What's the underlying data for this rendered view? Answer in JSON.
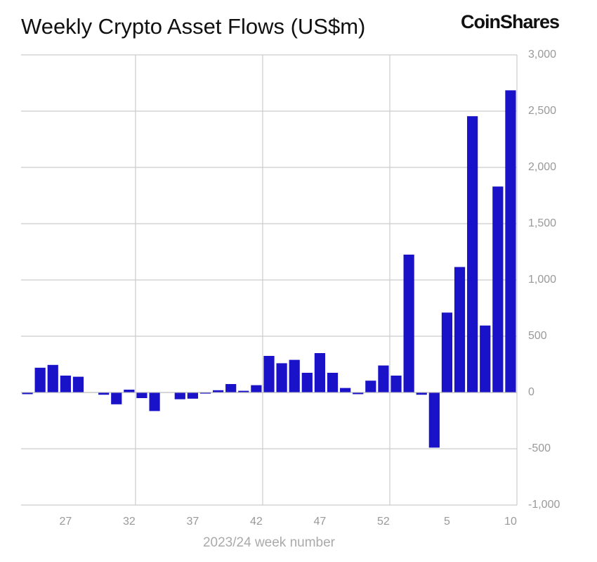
{
  "chart_data": {
    "type": "bar",
    "title": "Weekly Crypto Asset Flows (US$m)",
    "brand": "CoinShares",
    "x_label": "2023/24 week number",
    "categories": [
      null,
      null,
      null,
      "27",
      null,
      null,
      null,
      null,
      "32",
      null,
      null,
      null,
      null,
      "37",
      null,
      null,
      null,
      null,
      "42",
      null,
      null,
      null,
      null,
      "47",
      null,
      null,
      null,
      null,
      "52",
      null,
      null,
      null,
      null,
      "5",
      null,
      null,
      null,
      null,
      "10"
    ],
    "values": [
      -15,
      220,
      245,
      150,
      140,
      0,
      -20,
      -105,
      25,
      -50,
      -165,
      0,
      -60,
      -55,
      -10,
      20,
      75,
      15,
      65,
      325,
      260,
      290,
      175,
      350,
      175,
      40,
      -15,
      105,
      240,
      150,
      1225,
      -20,
      -490,
      710,
      1115,
      2455,
      595,
      1830,
      2685
    ],
    "color": "#1a12c9",
    "ylim": [
      -1000,
      3000
    ],
    "yticks": [
      {
        "value": -1000,
        "label": "-1,000"
      },
      -500,
      0,
      500,
      {
        "value": 1000,
        "label": "1,000"
      },
      {
        "value": 1500,
        "label": "1,500"
      },
      {
        "value": 2000,
        "label": "2,000"
      },
      {
        "value": 2500,
        "label": "2,500"
      },
      {
        "value": 3000,
        "label": "3,000"
      }
    ],
    "grid": true
  }
}
